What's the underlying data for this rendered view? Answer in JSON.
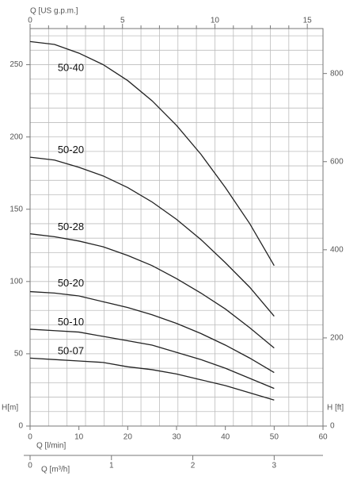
{
  "chart_data": {
    "type": "line",
    "x": [
      0,
      5,
      10,
      15,
      20,
      25,
      30,
      35,
      40,
      45,
      50
    ],
    "xlabel": "Q [l/min]",
    "xlim": [
      0,
      60
    ],
    "xticks": [
      0,
      10,
      20,
      30,
      40,
      50,
      60
    ],
    "ylabel": "H[m]",
    "ylim": [
      0,
      275
    ],
    "yticks": [
      0,
      50,
      100,
      150,
      200,
      250
    ],
    "yminorticks": [
      10,
      20,
      30,
      40,
      60,
      70,
      80,
      90,
      110,
      120,
      130,
      140,
      160,
      170,
      180,
      190,
      210,
      220,
      230,
      240,
      260,
      270
    ],
    "y2label": "H [ft]",
    "y2lim": [
      0,
      902
    ],
    "y2ticks": [
      0,
      200,
      400,
      600,
      800
    ],
    "x2label": "Q [US g.p.m.]",
    "x2lim": [
      0,
      15.85
    ],
    "x2ticks": [
      0,
      5,
      10,
      15
    ],
    "x2minorticks": [
      1,
      2,
      3,
      4,
      6,
      7,
      8,
      9,
      11,
      12,
      13,
      14
    ],
    "x3label": "Q [m³/h]",
    "x3lim": [
      0,
      3.6
    ],
    "x3ticks": [
      0,
      1,
      2,
      3
    ],
    "grid": true,
    "series": [
      {
        "name": "50-40",
        "color": "#222222",
        "values": [
          266,
          264,
          258,
          250,
          239,
          225,
          208,
          188,
          165,
          140,
          111
        ]
      },
      {
        "name": "50-20",
        "color": "#222222",
        "values": [
          186,
          184,
          179,
          173,
          165,
          155,
          143,
          129,
          113,
          96,
          76
        ]
      },
      {
        "name": "50-28",
        "color": "#222222",
        "values": [
          133,
          131,
          128,
          124,
          118,
          111,
          102,
          92,
          81,
          68,
          54
        ]
      },
      {
        "name": "50-20",
        "color": "#222222",
        "values": [
          93,
          92,
          90,
          86,
          82,
          77,
          71,
          64,
          56,
          47,
          37
        ]
      },
      {
        "name": "50-10",
        "color": "#222222",
        "values": [
          67,
          66,
          65,
          62,
          59,
          56,
          51,
          46,
          40,
          33,
          26
        ]
      },
      {
        "name": "50-07",
        "color": "#222222",
        "values": [
          47,
          46,
          45,
          44,
          41,
          39,
          36,
          32,
          28,
          23,
          18
        ]
      }
    ]
  }
}
